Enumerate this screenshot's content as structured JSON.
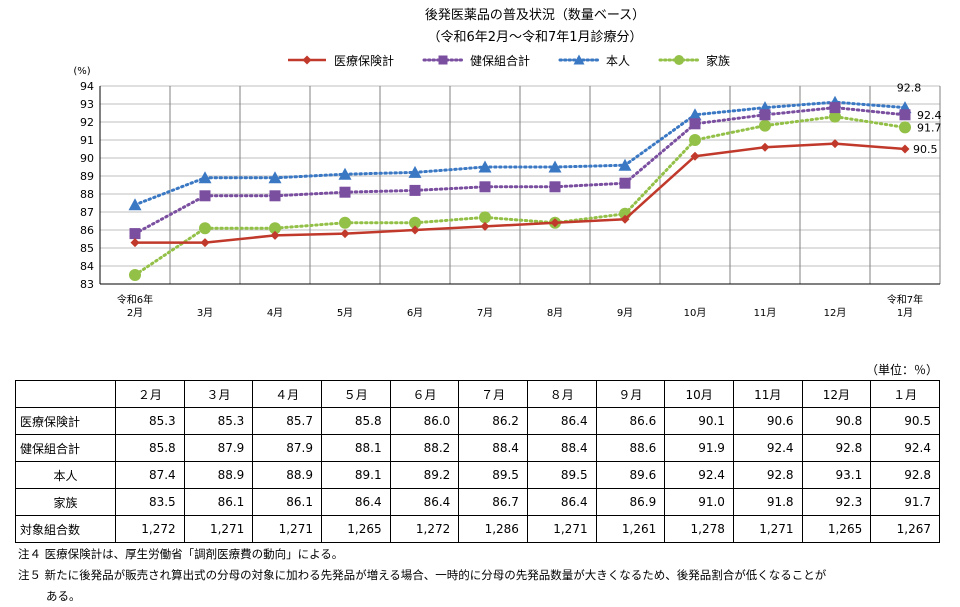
{
  "chart_data": {
    "type": "line",
    "title": "後発医薬品の普及状況（数量ベース）",
    "subtitle": "（令和6年2月～令和7年1月診療分）",
    "ylabel": "(%)",
    "ylim": [
      83,
      94
    ],
    "yticks": [
      83,
      84,
      85,
      86,
      87,
      88,
      89,
      90,
      91,
      92,
      93,
      94
    ],
    "categories": [
      {
        "l1": "令和6年",
        "l2": "2月"
      },
      {
        "l1": "",
        "l2": "3月"
      },
      {
        "l1": "",
        "l2": "4月"
      },
      {
        "l1": "",
        "l2": "5月"
      },
      {
        "l1": "",
        "l2": "6月"
      },
      {
        "l1": "",
        "l2": "7月"
      },
      {
        "l1": "",
        "l2": "8月"
      },
      {
        "l1": "",
        "l2": "9月"
      },
      {
        "l1": "",
        "l2": "10月"
      },
      {
        "l1": "",
        "l2": "11月"
      },
      {
        "l1": "",
        "l2": "12月"
      },
      {
        "l1": "令和7年",
        "l2": "1月"
      }
    ],
    "series": [
      {
        "name": "医療保険計",
        "color": "#c0392b",
        "marker": "diamond",
        "dash": "solid",
        "values": [
          85.3,
          85.3,
          85.7,
          85.8,
          86.0,
          86.2,
          86.4,
          86.6,
          90.1,
          90.6,
          90.8,
          90.5
        ],
        "end_label": "90.5"
      },
      {
        "name": "健保組合計",
        "color": "#7b4fa0",
        "marker": "square",
        "dash": "dot",
        "values": [
          85.8,
          87.9,
          87.9,
          88.1,
          88.2,
          88.4,
          88.4,
          88.6,
          91.9,
          92.4,
          92.8,
          92.4
        ],
        "end_label": "92.4"
      },
      {
        "name": "本人",
        "color": "#3b78c3",
        "marker": "triangle",
        "dash": "dot",
        "values": [
          87.4,
          88.9,
          88.9,
          89.1,
          89.2,
          89.5,
          89.5,
          89.6,
          92.4,
          92.8,
          93.1,
          92.8
        ],
        "end_label": "92.8"
      },
      {
        "name": "家族",
        "color": "#93c047",
        "marker": "circle",
        "dash": "dot",
        "values": [
          83.5,
          86.1,
          86.1,
          86.4,
          86.4,
          86.7,
          86.4,
          86.9,
          91.0,
          91.8,
          92.3,
          91.7
        ],
        "end_label": "91.7"
      }
    ],
    "grid": true,
    "legend": "top-center"
  },
  "table": {
    "unit": "（単位：％）",
    "headers": [
      "",
      "２月",
      "３月",
      "４月",
      "５月",
      "６月",
      "７月",
      "８月",
      "９月",
      "10月",
      "11月",
      "12月",
      "１月"
    ],
    "rows": [
      {
        "label": "医療保険計",
        "values": [
          "85.3",
          "85.3",
          "85.7",
          "85.8",
          "86.0",
          "86.2",
          "86.4",
          "86.6",
          "90.1",
          "90.6",
          "90.8",
          "90.5"
        ]
      },
      {
        "label": "健保組合計",
        "values": [
          "85.8",
          "87.9",
          "87.9",
          "88.1",
          "88.2",
          "88.4",
          "88.4",
          "88.6",
          "91.9",
          "92.4",
          "92.8",
          "92.4"
        ]
      },
      {
        "label": "本人",
        "values": [
          "87.4",
          "88.9",
          "88.9",
          "89.1",
          "89.2",
          "89.5",
          "89.5",
          "89.6",
          "92.4",
          "92.8",
          "93.1",
          "92.8"
        ]
      },
      {
        "label": "家族",
        "values": [
          "83.5",
          "86.1",
          "86.1",
          "86.4",
          "86.4",
          "86.7",
          "86.4",
          "86.9",
          "91.0",
          "91.8",
          "92.3",
          "91.7"
        ]
      },
      {
        "label": "対象組合数",
        "values": [
          "1,272",
          "1,271",
          "1,271",
          "1,265",
          "1,272",
          "1,286",
          "1,271",
          "1,261",
          "1,278",
          "1,271",
          "1,265",
          "1,267"
        ]
      }
    ]
  },
  "notes": [
    "注４ 医療保険計は、厚生労働省「調剤医療費の動向」による。",
    "注５ 新たに後発品が販売され算出式の分母の対象に加わる先発品が増える場合、一時的に分母の先発品数量が大きくなるため、後発品割合が低くなることが",
    "ある。"
  ]
}
